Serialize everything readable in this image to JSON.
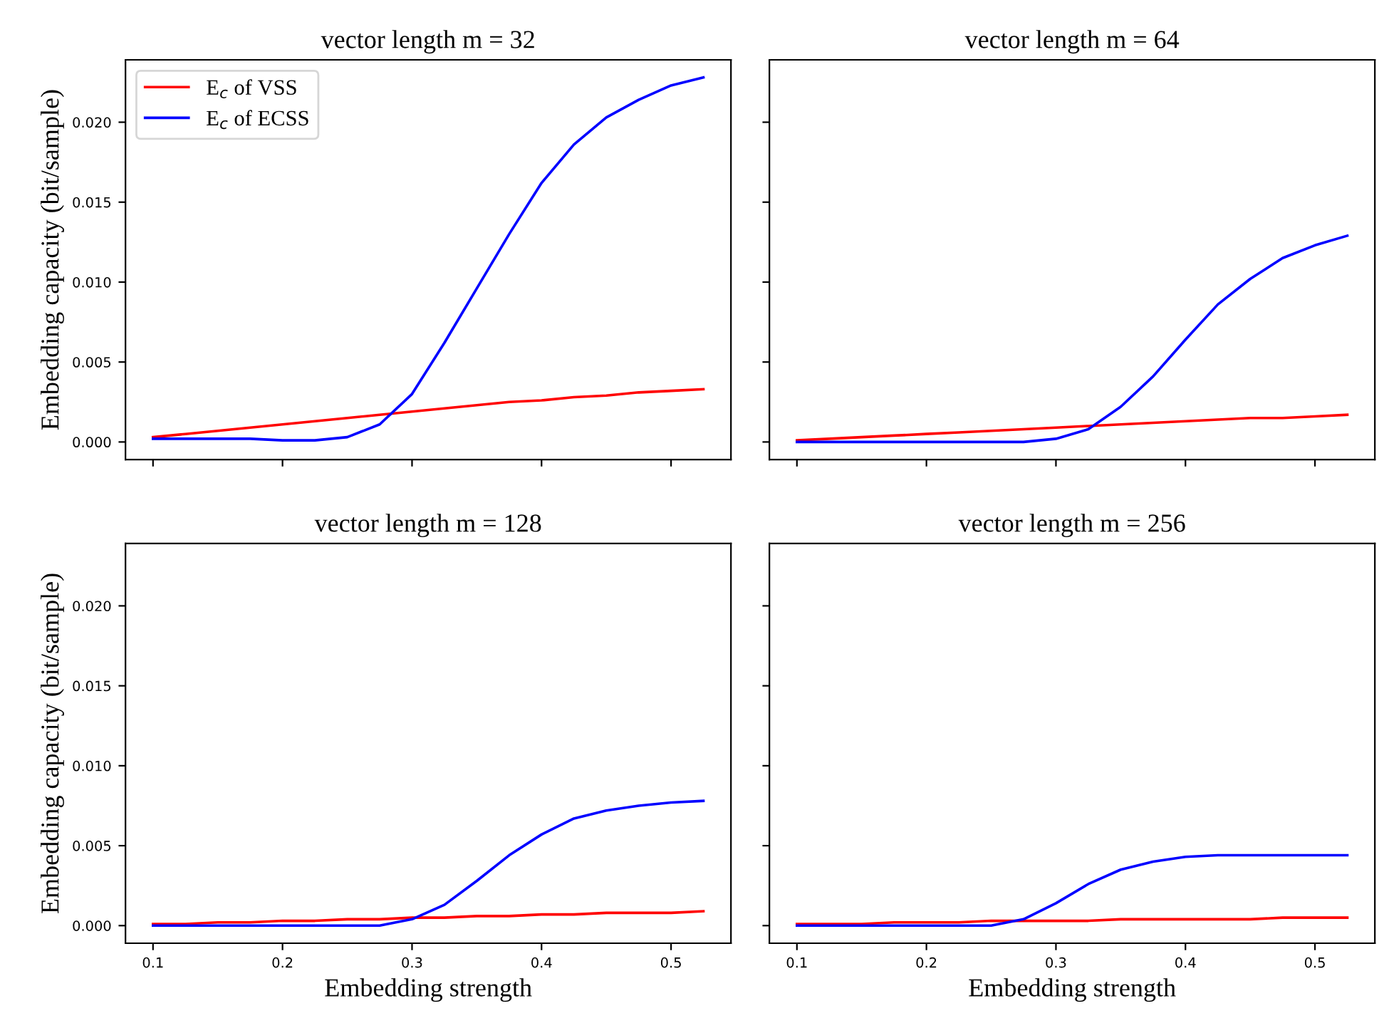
{
  "chart_data": [
    {
      "type": "line",
      "title": "vector length m = 32",
      "ylabel": "Embedding capacity (bit/sample)",
      "x": [
        0.1,
        0.125,
        0.15,
        0.175,
        0.2,
        0.225,
        0.25,
        0.275,
        0.3,
        0.325,
        0.35,
        0.375,
        0.4,
        0.425,
        0.45,
        0.475,
        0.5,
        0.525
      ],
      "series": [
        {
          "name": "E$_{c}$ of VSS",
          "color": "#ff0000",
          "values": [
            0.0003,
            0.0005,
            0.0007,
            0.0009,
            0.0011,
            0.0013,
            0.0015,
            0.0017,
            0.0019,
            0.0021,
            0.0023,
            0.0025,
            0.0026,
            0.0028,
            0.0029,
            0.0031,
            0.0032,
            0.0033
          ]
        },
        {
          "name": "E$_{c}$ of ECSS",
          "color": "#0000ff",
          "values": [
            0.0002,
            0.0002,
            0.0002,
            0.0002,
            0.0001,
            0.0001,
            0.0003,
            0.0011,
            0.003,
            0.0062,
            0.0096,
            0.013,
            0.0162,
            0.0186,
            0.0203,
            0.0214,
            0.0223,
            0.0228
          ]
        }
      ],
      "xlim": [
        0.07875,
        0.54625
      ],
      "ylim": [
        -0.0011,
        0.0239
      ],
      "xticks": [
        {
          "value": 0.1,
          "label": null
        },
        {
          "value": 0.2,
          "label": null
        },
        {
          "value": 0.3,
          "label": null
        },
        {
          "value": 0.4,
          "label": null
        },
        {
          "value": 0.5,
          "label": null
        }
      ],
      "yticks": [
        {
          "value": 0,
          "label": "0.000"
        },
        {
          "value": 0.005,
          "label": "0.005"
        },
        {
          "value": 0.01,
          "label": "0.010"
        },
        {
          "value": 0.015,
          "label": "0.015"
        },
        {
          "value": 0.02,
          "label": "0.020"
        }
      ],
      "tick_labels": "y",
      "legend": "top left",
      "grid": false
    },
    {
      "type": "line",
      "title": "vector length m = 64",
      "x": [
        0.1,
        0.125,
        0.15,
        0.175,
        0.2,
        0.225,
        0.25,
        0.275,
        0.3,
        0.325,
        0.35,
        0.375,
        0.4,
        0.425,
        0.45,
        0.475,
        0.5,
        0.525
      ],
      "series": [
        {
          "color": "#ff0000",
          "values": [
            0.0001,
            0.0002,
            0.0003,
            0.0004,
            0.0005,
            0.0006,
            0.0007,
            0.0008,
            0.0009,
            0.001,
            0.0011,
            0.0012,
            0.0013,
            0.0014,
            0.0015,
            0.0015,
            0.0016,
            0.0017
          ]
        },
        {
          "color": "#0000ff",
          "values": [
            0.0,
            0.0,
            0.0,
            0.0,
            0.0,
            0.0,
            0.0,
            0.0,
            0.0002,
            0.0008,
            0.0022,
            0.0041,
            0.0064,
            0.0086,
            0.0102,
            0.0115,
            0.0123,
            0.0129
          ]
        }
      ],
      "xlim": [
        0.07875,
        0.54625
      ],
      "ylim": [
        -0.0011,
        0.0239
      ],
      "xticks": [
        {
          "value": 0.1,
          "label": null
        },
        {
          "value": 0.2,
          "label": null
        },
        {
          "value": 0.3,
          "label": null
        },
        {
          "value": 0.4,
          "label": null
        },
        {
          "value": 0.5,
          "label": null
        }
      ],
      "yticks": [
        {
          "value": 0,
          "label": null
        },
        {
          "value": 0.005,
          "label": null
        },
        {
          "value": 0.01,
          "label": null
        },
        {
          "value": 0.015,
          "label": null
        },
        {
          "value": 0.02,
          "label": null
        }
      ],
      "tick_labels": false,
      "grid": false
    },
    {
      "type": "line",
      "title": "vector length m = 128",
      "xlabel": "Embedding strength",
      "ylabel": "Embedding capacity (bit/sample)",
      "x": [
        0.1,
        0.125,
        0.15,
        0.175,
        0.2,
        0.225,
        0.25,
        0.275,
        0.3,
        0.325,
        0.35,
        0.375,
        0.4,
        0.425,
        0.45,
        0.475,
        0.5,
        0.525
      ],
      "series": [
        {
          "color": "#ff0000",
          "values": [
            0.0001,
            0.0001,
            0.0002,
            0.0002,
            0.0003,
            0.0003,
            0.0004,
            0.0004,
            0.0005,
            0.0005,
            0.0006,
            0.0006,
            0.0007,
            0.0007,
            0.0008,
            0.0008,
            0.0008,
            0.0009
          ]
        },
        {
          "color": "#0000ff",
          "values": [
            0.0,
            0.0,
            0.0,
            0.0,
            0.0,
            0.0,
            0.0,
            0.0,
            0.0004,
            0.0013,
            0.0028,
            0.0044,
            0.0057,
            0.0067,
            0.0072,
            0.0075,
            0.0077,
            0.0078
          ]
        }
      ],
      "xlim": [
        0.07875,
        0.54625
      ],
      "ylim": [
        -0.0011,
        0.0239
      ],
      "xticks": [
        0.1,
        0.2,
        0.3,
        0.4,
        0.5
      ],
      "yticks": [
        {
          "value": 0,
          "label": "0.000"
        },
        {
          "value": 0.005,
          "label": "0.005"
        },
        {
          "value": 0.01,
          "label": "0.010"
        },
        {
          "value": 0.015,
          "label": "0.015"
        },
        {
          "value": 0.02,
          "label": "0.020"
        }
      ],
      "grid": false
    },
    {
      "type": "line",
      "title": "vector length m = 256",
      "xlabel": "Embedding strength",
      "x": [
        0.1,
        0.125,
        0.15,
        0.175,
        0.2,
        0.225,
        0.25,
        0.275,
        0.3,
        0.325,
        0.35,
        0.375,
        0.4,
        0.425,
        0.45,
        0.475,
        0.5,
        0.525
      ],
      "series": [
        {
          "color": "#ff0000",
          "values": [
            0.0001,
            0.0001,
            0.0001,
            0.0002,
            0.0002,
            0.0002,
            0.0003,
            0.0003,
            0.0003,
            0.0003,
            0.0004,
            0.0004,
            0.0004,
            0.0004,
            0.0004,
            0.0005,
            0.0005,
            0.0005
          ]
        },
        {
          "color": "#0000ff",
          "values": [
            0.0,
            0.0,
            0.0,
            0.0,
            0.0,
            0.0,
            0.0,
            0.0004,
            0.0014,
            0.0026,
            0.0035,
            0.004,
            0.0043,
            0.0044,
            0.0044,
            0.0044,
            0.0044,
            0.0044
          ]
        }
      ],
      "xlim": [
        0.07875,
        0.54625
      ],
      "ylim": [
        -0.0011,
        0.0239
      ],
      "xticks": [
        0.1,
        0.2,
        0.3,
        0.4,
        0.5
      ],
      "yticks": [
        {
          "value": 0,
          "label": null
        },
        {
          "value": 0.005,
          "label": null
        },
        {
          "value": 0.01,
          "label": null
        },
        {
          "value": 0.015,
          "label": null
        },
        {
          "value": 0.02,
          "label": null
        }
      ],
      "tick_labels": "x",
      "grid": false
    }
  ]
}
